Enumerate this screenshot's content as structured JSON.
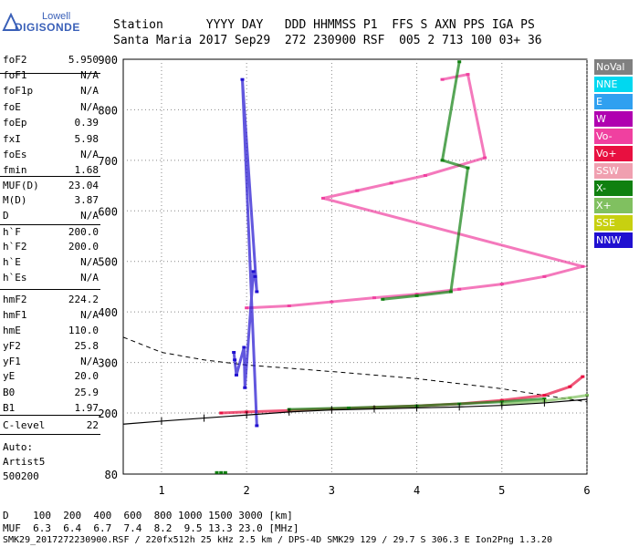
{
  "logo": {
    "top": "Lowell",
    "bottom": "DIGISONDE"
  },
  "header": {
    "line1": "Station      YYYY DAY   DDD HHMMSS P1  FFS S AXN PPS IGA PS",
    "line2": "Santa Maria 2017 Sep29  272 230900 RSF  005 2 713 100 03+ 36"
  },
  "params": [
    {
      "label": "foF2",
      "value": "5.950"
    },
    {
      "label": "foF1",
      "value": "N/A"
    },
    {
      "label": "foF1p",
      "value": "N/A"
    },
    {
      "label": "foE",
      "value": "N/A"
    },
    {
      "label": "foEp",
      "value": "0.39"
    },
    {
      "label": "fxI",
      "value": "5.98"
    },
    {
      "label": "foEs",
      "value": "N/A"
    },
    {
      "label": "fmin",
      "value": "1.68"
    },
    {
      "label": "MUF(D)",
      "value": "23.04"
    },
    {
      "label": "M(D)",
      "value": "3.87"
    },
    {
      "label": "D",
      "value": "N/A"
    },
    {
      "label": "h`F",
      "value": "200.0"
    },
    {
      "label": "h`F2",
      "value": "200.0"
    },
    {
      "label": "h`E",
      "value": "N/A"
    },
    {
      "label": "h`Es",
      "value": "N/A"
    },
    {
      "label": "hmF2",
      "value": "224.2"
    },
    {
      "label": "hmF1",
      "value": "N/A"
    },
    {
      "label": "hmE",
      "value": "110.0"
    },
    {
      "label": "yF2",
      "value": "25.8"
    },
    {
      "label": "yF1",
      "value": "N/A"
    },
    {
      "label": "yE",
      "value": "20.0"
    },
    {
      "label": "B0",
      "value": "25.9"
    },
    {
      "label": "B1",
      "value": "1.97"
    },
    {
      "label": "C-level",
      "value": "22"
    }
  ],
  "auto": [
    "Auto:",
    "Artist5",
    "500200"
  ],
  "legend": [
    {
      "label": "NoVal",
      "color": "#808080"
    },
    {
      "label": "NNE",
      "color": "#00d8f0"
    },
    {
      "label": "E",
      "color": "#30a0f0"
    },
    {
      "label": "W",
      "color": "#b000b0"
    },
    {
      "label": "Vo-",
      "color": "#f040a0"
    },
    {
      "label": "Vo+",
      "color": "#e81040"
    },
    {
      "label": "SSW",
      "color": "#f0a0b0"
    },
    {
      "label": "X-",
      "color": "#108010"
    },
    {
      "label": "X+",
      "color": "#80c060"
    },
    {
      "label": "SSE",
      "color": "#c8d010"
    },
    {
      "label": "NNW",
      "color": "#2010d0"
    }
  ],
  "footer": {
    "line1": "D    100  200  400  600  800 1000 1500 3000 [km]",
    "line2": "MUF  6.3  6.4  6.7  7.4  8.2  9.5 13.3 23.0 [MHz]",
    "line3": "SMK29_2017272230900.RSF / 220fx512h 25 kHz 2.5 km / DPS-4D SMK29 129 / 29.7 S 306.3 E Ion2Png 1.3.20"
  },
  "chart_data": {
    "type": "scatter",
    "xlim": [
      0.55,
      6.0
    ],
    "ylim": [
      80,
      900
    ],
    "xticks": [
      "1",
      "2",
      "3",
      "4",
      "5",
      "6"
    ],
    "yticks": [
      "80",
      "200",
      "300",
      "400",
      "500",
      "600",
      "700",
      "800",
      "900"
    ],
    "grid": true,
    "legend_position": "right",
    "series": [
      {
        "name": "Vo+",
        "color": "#e81040",
        "x": [
          1.7,
          2.0,
          2.5,
          3.0,
          3.5,
          4.0,
          4.5,
          5.0,
          5.5,
          5.8,
          5.95
        ],
        "y": [
          200,
          202,
          205,
          208,
          211,
          214,
          218,
          225,
          235,
          252,
          272
        ]
      },
      {
        "name": "X-",
        "color": "#108010",
        "x": [
          2.5,
          3.2,
          4.0,
          4.5,
          5.0,
          5.5
        ],
        "y": [
          207,
          210,
          214,
          218,
          222,
          228
        ]
      },
      {
        "name": "X+",
        "color": "#80c060",
        "x": [
          5.0,
          5.5,
          5.8,
          6.0
        ],
        "y": [
          218,
          224,
          230,
          235
        ]
      },
      {
        "name": "Vo-",
        "color": "#f040a0",
        "x": [
          2.0,
          2.5,
          3.0,
          3.5,
          4.0,
          4.5,
          5.0,
          5.5,
          5.95,
          2.9,
          3.3,
          3.7,
          4.1,
          4.5,
          4.8,
          4.6,
          4.3
        ],
        "y": [
          408,
          412,
          420,
          428,
          435,
          445,
          455,
          470,
          490,
          625,
          640,
          655,
          670,
          690,
          705,
          870,
          860
        ]
      },
      {
        "name": "X-",
        "color": "#108010",
        "x": [
          3.6,
          4.0,
          4.4,
          4.6,
          4.3,
          4.5
        ],
        "y": [
          425,
          432,
          440,
          685,
          700,
          895
        ]
      },
      {
        "name": "NNW",
        "color": "#2010d0",
        "x": [
          1.85,
          1.86,
          1.88,
          1.97,
          1.98,
          2.08,
          2.1,
          2.12,
          1.95,
          2.12
        ],
        "y": [
          320,
          305,
          275,
          330,
          250,
          480,
          470,
          440,
          860,
          175
        ]
      },
      {
        "name": "X-",
        "color": "#108010",
        "x": [
          1.65,
          1.7,
          1.75
        ],
        "y": [
          83,
          83,
          83
        ]
      }
    ],
    "dashed_curve": {
      "x": [
        0.55,
        1.0,
        1.5,
        2.0,
        3.0,
        4.0,
        5.0,
        5.5,
        6.0
      ],
      "y": [
        350,
        320,
        305,
        295,
        282,
        268,
        248,
        235,
        222
      ]
    },
    "profile_curve": {
      "x": [
        0.55,
        1.0,
        1.5,
        2.0,
        2.5,
        3.0,
        3.5,
        4.0,
        4.5,
        5.0,
        5.5,
        6.0
      ],
      "y": [
        178,
        184,
        190,
        196,
        202,
        206,
        208,
        210,
        212,
        215,
        220,
        227
      ]
    }
  }
}
